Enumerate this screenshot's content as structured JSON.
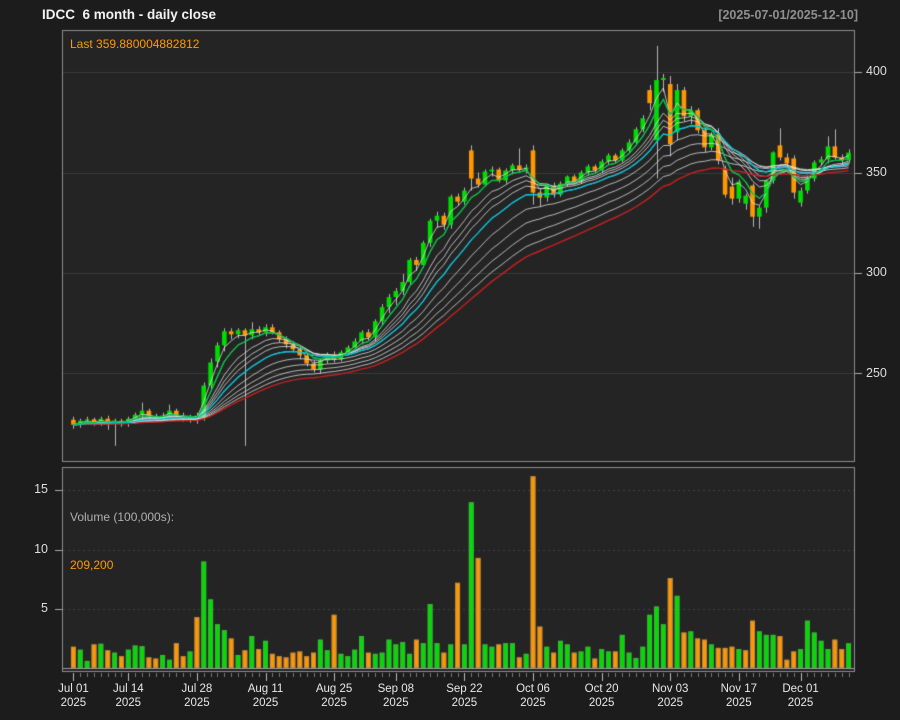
{
  "header": {
    "title": "IDCC  6 month - daily close",
    "date_range": "[2025-07-01/2025-12-10]"
  },
  "price_panel": {
    "last_label": "Last",
    "last_value": "359.880004882812"
  },
  "volume_panel": {
    "label": "Volume (100,000s):",
    "last_value": "209,200"
  },
  "chart_data": {
    "type": "candlestick+volume",
    "title": "IDCC  6 month - daily close",
    "subtitle": "[2025-07-01/2025-12-10]",
    "symbol": "IDCC",
    "last_close": 359.880004882812,
    "last_volume_100000s": 2.092,
    "x": {
      "year": "2025",
      "dates": [
        "Jul 01",
        "Jul 02",
        "Jul 03",
        "Jul 07",
        "Jul 08",
        "Jul 09",
        "Jul 10",
        "Jul 11",
        "Jul 14",
        "Jul 15",
        "Jul 16",
        "Jul 17",
        "Jul 18",
        "Jul 21",
        "Jul 22",
        "Jul 23",
        "Jul 24",
        "Jul 25",
        "Jul 28",
        "Jul 29",
        "Jul 30",
        "Jul 31",
        "Aug 01",
        "Aug 04",
        "Aug 05",
        "Aug 06",
        "Aug 07",
        "Aug 08",
        "Aug 11",
        "Aug 12",
        "Aug 13",
        "Aug 14",
        "Aug 15",
        "Aug 18",
        "Aug 19",
        "Aug 20",
        "Aug 21",
        "Aug 22",
        "Aug 25",
        "Aug 26",
        "Aug 27",
        "Aug 28",
        "Aug 29",
        "Sep 02",
        "Sep 03",
        "Sep 04",
        "Sep 05",
        "Sep 08",
        "Sep 09",
        "Sep 10",
        "Sep 11",
        "Sep 12",
        "Sep 15",
        "Sep 16",
        "Sep 17",
        "Sep 18",
        "Sep 19",
        "Sep 22",
        "Sep 23",
        "Sep 24",
        "Sep 25",
        "Sep 26",
        "Sep 29",
        "Sep 30",
        "Oct 01",
        "Oct 02",
        "Oct 03",
        "Oct 06",
        "Oct 07",
        "Oct 08",
        "Oct 09",
        "Oct 10",
        "Oct 13",
        "Oct 14",
        "Oct 15",
        "Oct 16",
        "Oct 17",
        "Oct 20",
        "Oct 21",
        "Oct 22",
        "Oct 23",
        "Oct 24",
        "Oct 27",
        "Oct 28",
        "Oct 29",
        "Oct 30",
        "Oct 31",
        "Nov 03",
        "Nov 04",
        "Nov 05",
        "Nov 06",
        "Nov 07",
        "Nov 10",
        "Nov 11",
        "Nov 12",
        "Nov 13",
        "Nov 14",
        "Nov 17",
        "Nov 18",
        "Nov 19",
        "Nov 20",
        "Nov 21",
        "Nov 24",
        "Nov 25",
        "Nov 26",
        "Nov 28",
        "Dec 01",
        "Dec 02",
        "Dec 03",
        "Dec 04",
        "Dec 05",
        "Dec 08",
        "Dec 09",
        "Dec 10"
      ],
      "tick_anchors": [
        {
          "text": "Jul 01",
          "index": 0
        },
        {
          "text": "Jul 14",
          "index": 8
        },
        {
          "text": "Jul 28",
          "index": 18
        },
        {
          "text": "Aug 11",
          "index": 28
        },
        {
          "text": "Aug 25",
          "index": 38
        },
        {
          "text": "Sep 08",
          "index": 47
        },
        {
          "text": "Sep 22",
          "index": 57
        },
        {
          "text": "Oct 06",
          "index": 67
        },
        {
          "text": "Oct 20",
          "index": 77
        },
        {
          "text": "Nov 03",
          "index": 87
        },
        {
          "text": "Nov 17",
          "index": 97
        },
        {
          "text": "Dec 01",
          "index": 106
        }
      ]
    },
    "price": {
      "ticks": [
        250,
        300,
        350,
        400
      ],
      "ylim": [
        206,
        421
      ],
      "open": [
        227.0,
        224.5,
        227.0,
        227.2,
        225.0,
        227.5,
        225.5,
        226.5,
        225.0,
        227.5,
        229.5,
        231.5,
        229.0,
        227.5,
        229.0,
        231.5,
        229.0,
        227.5,
        229.0,
        228.0,
        244.0,
        256.0,
        264.0,
        271.0,
        269.5,
        271.5,
        269.0,
        272.0,
        270.5,
        273.0,
        270.5,
        267.0,
        264.5,
        262.0,
        259.0,
        255.0,
        252.0,
        256.5,
        259.5,
        257.0,
        260.5,
        263.0,
        266.0,
        270.5,
        268.0,
        276.0,
        283.0,
        288.0,
        291.0,
        295.5,
        306.5,
        304.0,
        315.0,
        326.0,
        328.5,
        324.0,
        338.0,
        335.5,
        361.0,
        347.0,
        344.0,
        350.5,
        351.5,
        346.0,
        351.0,
        353.5,
        351.5,
        361.0,
        340.0,
        337.5,
        343.5,
        339.0,
        344.5,
        348.0,
        345.5,
        350.0,
        353.0,
        351.0,
        355.5,
        358.5,
        356.0,
        361.0,
        365.0,
        371.5,
        391.0,
        366.0,
        396.0,
        394.0,
        370.0,
        391.0,
        378.0,
        381.0,
        371.0,
        362.5,
        369.0,
        352.0,
        343.0,
        337.0,
        334.5,
        343.5,
        328.0,
        332.5,
        346.0,
        363.5,
        357.5,
        357.0,
        335.0,
        341.0,
        347.0,
        355.0,
        356.5,
        363.0,
        357.5,
        356.0
      ],
      "high": [
        228.5,
        227.5,
        228.5,
        228.0,
        228.5,
        229.0,
        227.5,
        227.5,
        228.5,
        230.5,
        235.5,
        232.5,
        230.0,
        230.5,
        234.5,
        232.5,
        230.5,
        229.5,
        230.5,
        245.5,
        257.5,
        265.5,
        272.5,
        272.5,
        272.5,
        272.5,
        275.5,
        273.5,
        274.5,
        274.5,
        271.5,
        268.5,
        266.0,
        263.5,
        260.5,
        256.5,
        257.5,
        260.5,
        261.0,
        261.5,
        264.0,
        267.5,
        271.5,
        272.0,
        277.0,
        284.5,
        289.5,
        292.5,
        299.5,
        307.5,
        308.0,
        316.0,
        327.0,
        330.5,
        330.0,
        339.0,
        339.5,
        342.5,
        363.5,
        350.0,
        351.5,
        353.0,
        352.5,
        352.0,
        354.5,
        362.0,
        354.0,
        363.5,
        341.5,
        344.5,
        345.0,
        345.5,
        348.5,
        349.0,
        351.0,
        354.0,
        354.0,
        356.5,
        359.5,
        359.5,
        362.0,
        366.5,
        372.5,
        378.5,
        393.5,
        413.0,
        399.0,
        398.0,
        394.0,
        392.5,
        383.0,
        382.0,
        372.5,
        370.0,
        372.0,
        353.5,
        347.5,
        346.5,
        339.5,
        344.5,
        333.5,
        346.5,
        360.5,
        372.0,
        359.5,
        358.5,
        342.5,
        348.0,
        356.0,
        358.0,
        368.0,
        371.5,
        359.0,
        361.5
      ],
      "low": [
        222.5,
        223.0,
        225.5,
        224.0,
        224.0,
        222.0,
        214.0,
        223.5,
        223.5,
        226.5,
        227.0,
        226.5,
        226.0,
        226.0,
        228.0,
        228.0,
        226.0,
        225.5,
        225.0,
        226.5,
        242.0,
        253.0,
        261.0,
        267.0,
        267.5,
        214.0,
        267.0,
        269.0,
        268.5,
        269.5,
        265.5,
        262.5,
        260.5,
        257.0,
        253.5,
        250.5,
        250.0,
        255.0,
        255.5,
        256.0,
        259.0,
        262.0,
        264.5,
        266.5,
        266.0,
        274.0,
        280.0,
        284.0,
        289.0,
        294.0,
        301.0,
        302.5,
        313.0,
        322.5,
        321.5,
        322.0,
        333.5,
        334.0,
        341.0,
        342.5,
        343.0,
        348.0,
        345.0,
        344.5,
        349.0,
        350.5,
        349.5,
        334.0,
        333.0,
        335.5,
        337.5,
        338.0,
        343.0,
        344.0,
        344.5,
        348.5,
        349.5,
        350.0,
        354.0,
        354.5,
        355.0,
        359.5,
        363.5,
        370.0,
        381.0,
        347.0,
        390.0,
        358.0,
        366.0,
        375.5,
        374.0,
        369.5,
        360.0,
        361.0,
        354.0,
        337.5,
        334.0,
        335.0,
        331.5,
        323.0,
        322.0,
        330.0,
        344.5,
        356.0,
        353.0,
        337.0,
        333.0,
        339.5,
        345.5,
        353.5,
        354.5,
        356.5,
        353.5,
        354.5
      ],
      "close": [
        224.5,
        226.5,
        227.2,
        225.0,
        227.5,
        225.5,
        226.5,
        225.0,
        227.5,
        229.5,
        231.5,
        229.0,
        227.5,
        229.0,
        231.5,
        229.0,
        227.5,
        228.5,
        227.5,
        244.0,
        255.5,
        264.0,
        271.0,
        269.5,
        271.5,
        269.0,
        272.0,
        270.5,
        273.0,
        270.5,
        267.0,
        264.5,
        262.0,
        259.0,
        255.0,
        252.0,
        256.5,
        259.5,
        257.0,
        260.5,
        263.0,
        266.0,
        270.5,
        268.0,
        276.0,
        283.0,
        288.0,
        291.0,
        295.5,
        306.5,
        304.0,
        315.0,
        326.0,
        328.5,
        324.0,
        338.0,
        335.5,
        341.0,
        347.0,
        344.0,
        350.5,
        351.5,
        346.0,
        351.0,
        353.5,
        351.5,
        352.5,
        340.0,
        337.5,
        343.5,
        339.0,
        344.5,
        348.0,
        345.5,
        350.0,
        353.0,
        351.0,
        355.5,
        358.5,
        356.0,
        361.0,
        365.0,
        371.5,
        377.0,
        384.5,
        396.0,
        397.0,
        364.0,
        391.0,
        378.0,
        381.0,
        371.0,
        362.5,
        369.0,
        356.0,
        339.0,
        337.0,
        345.5,
        338.5,
        328.0,
        332.5,
        346.0,
        360.0,
        357.5,
        354.5,
        340.0,
        341.0,
        347.0,
        355.0,
        356.5,
        363.0,
        357.5,
        356.0,
        359.88
      ]
    },
    "volume": {
      "units": "100,000s",
      "ticks": [
        5,
        10,
        15
      ],
      "ylim": [
        0,
        17.3
      ],
      "values": [
        1.8,
        1.55,
        0.6,
        2.0,
        2.05,
        1.5,
        1.3,
        1.0,
        1.55,
        1.9,
        1.85,
        0.9,
        0.8,
        1.1,
        0.7,
        2.1,
        1.0,
        1.4,
        4.3,
        9.0,
        5.8,
        3.7,
        3.2,
        2.5,
        1.1,
        1.5,
        2.7,
        1.6,
        2.3,
        1.2,
        1.0,
        0.9,
        1.3,
        1.4,
        1.0,
        1.3,
        2.4,
        1.5,
        4.5,
        1.2,
        1.0,
        1.55,
        2.7,
        1.3,
        1.2,
        1.3,
        2.4,
        2.0,
        2.2,
        1.2,
        2.4,
        2.1,
        5.4,
        2.1,
        1.3,
        2.0,
        7.2,
        2.0,
        14.0,
        9.3,
        2.0,
        1.8,
        2.0,
        2.1,
        2.1,
        0.9,
        1.2,
        16.2,
        3.5,
        1.8,
        1.3,
        2.3,
        2.0,
        1.3,
        1.4,
        1.8,
        0.8,
        1.6,
        1.4,
        1.4,
        2.8,
        1.3,
        0.85,
        1.8,
        4.5,
        5.2,
        3.7,
        7.6,
        6.1,
        3.0,
        3.1,
        2.5,
        2.4,
        2.0,
        1.7,
        1.7,
        1.8,
        1.6,
        1.5,
        4.0,
        3.1,
        2.8,
        2.8,
        2.7,
        0.7,
        1.4,
        1.6,
        4.0,
        3.0,
        2.3,
        1.6,
        2.4,
        1.6,
        2.092
      ]
    },
    "overlays": {
      "ma_fan_periods": [
        3,
        5,
        8,
        10,
        12,
        15,
        20,
        25,
        30,
        35
      ],
      "ma_green_period": 5,
      "ma_cyan_period": 15,
      "ma_red_period": 40
    },
    "colors": {
      "up": "#00dd00",
      "down": "#ff9800",
      "wick": "#b3b3b3",
      "ma_fan": "#e6e6e6",
      "ma_red": "#c62020",
      "ma_cyan": "#00c4dc",
      "ma_green": "#00c040",
      "grid": "#3a3a3a",
      "panel_bg": "#242424",
      "page_bg": "#1c1c1c",
      "border": "#8c8c8c",
      "accent": "#ff9900"
    }
  }
}
